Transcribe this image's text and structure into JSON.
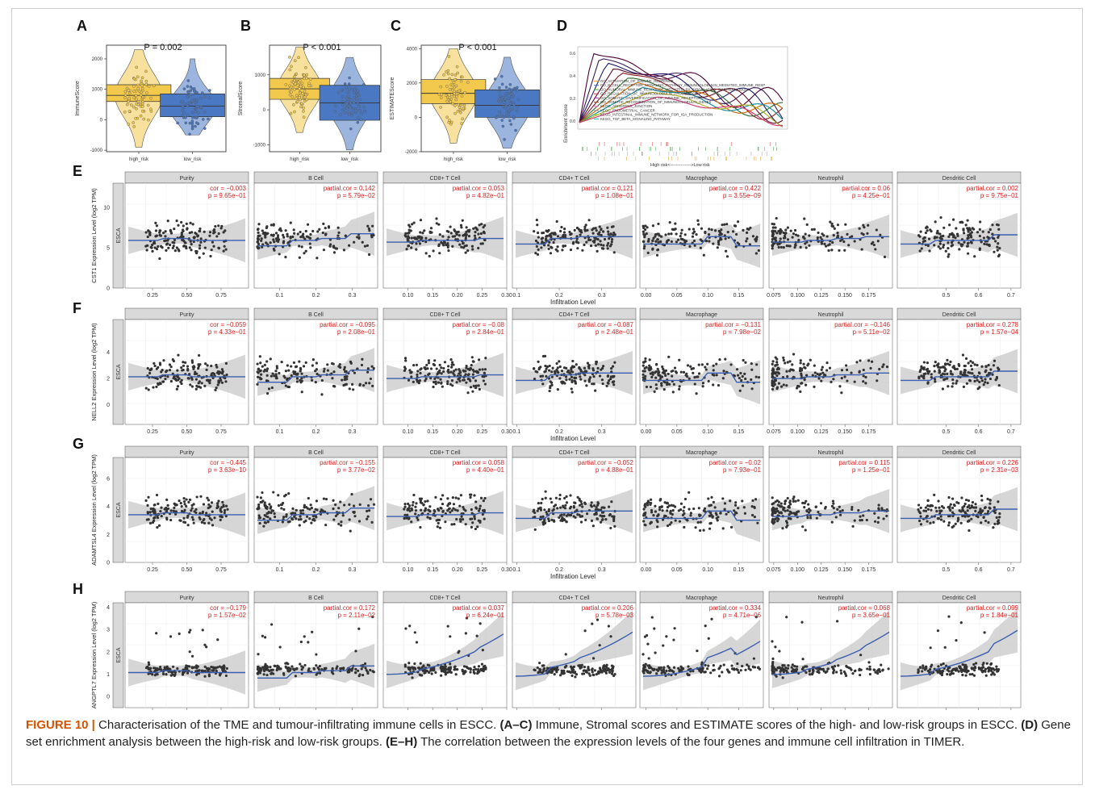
{
  "panels": {
    "A": "A",
    "B": "B",
    "C": "C",
    "D": "D",
    "E": "E",
    "F": "F",
    "G": "G",
    "H": "H"
  },
  "violins": [
    {
      "id": "A",
      "p_text": "P = 0.002",
      "ylabel": "ImmuneScore",
      "yticks": [
        -1000,
        0,
        1000,
        2000
      ],
      "ylim": [
        -1050,
        2450
      ],
      "groups": [
        "high_risk",
        "low_risk"
      ],
      "box_high": [
        600,
        800,
        1150
      ],
      "box_low": [
        100,
        450,
        850
      ],
      "range_high": [
        -900,
        2300
      ],
      "range_low": [
        -500,
        2000
      ]
    },
    {
      "id": "B",
      "p_text": "P < 0.001",
      "ylabel": "StromalScore",
      "yticks": [
        -1000,
        0,
        1000
      ],
      "ylim": [
        -1200,
        1850
      ],
      "groups": [
        "high_risk",
        "low_risk"
      ],
      "box_high": [
        300,
        600,
        900
      ],
      "box_low": [
        -300,
        200,
        700
      ],
      "range_high": [
        -650,
        1800
      ],
      "range_low": [
        -1150,
        1500
      ]
    },
    {
      "id": "C",
      "p_text": "P < 0.001",
      "ylabel": "ESTIMATEScore",
      "yticks": [
        -2000,
        0,
        2000,
        4000
      ],
      "ylim": [
        -2000,
        4200
      ],
      "groups": [
        "high_risk",
        "low_risk"
      ],
      "box_high": [
        800,
        1400,
        2200
      ],
      "box_low": [
        0,
        700,
        1600
      ],
      "range_high": [
        -1500,
        4000
      ],
      "range_low": [
        -1800,
        3500
      ]
    }
  ],
  "gsea": {
    "ylabel": "Enrichment Score",
    "yticks": [
      "0.6",
      "0.4",
      "0.2",
      "0.0"
    ],
    "xlabel": "High risk<-------------->Low risk",
    "legend": [
      "GO_ACTIVATION_OF_IMMUNE_RESPONSE",
      "GO_B_CELL_RECEPTOR_SIGNALING_PATHWAY_IMMUNOGLOBULIN_MEDIATED_IMMUNE_RESP",
      "GO_HUMORAL_IMMUNE_RESPONSE_MEDIATED_BY_CIRCULATING_IMMUNOGLOBULIN",
      "GO_REGULATION_OF_IMMUNOGLOBULIN_PRODUCTION",
      "GO_SOMATIC_DIVERSIFICATION_OF_IMMUNE_RECEPTORS",
      "GO_SOMATIC_RECOMBINATION_OF_IMMUNOGLOBULIN_GENES",
      "KEGG_ADHERENS_JUNCTION",
      "KEGG_ENDOMETRIAL_CANCER",
      "KEGG_INTESTINAL_IMMUNE_NETWORK_FOR_IGA_PRODUCTION",
      "KEGG_TGF_BETA_SIGNALING_PATHWAY"
    ],
    "colors": [
      "#ff9900",
      "#3366cc",
      "#33aa33",
      "#cc3333",
      "#9933cc",
      "#884422",
      "#ff66cc",
      "#888888",
      "#99cc00",
      "#00cccc"
    ]
  },
  "timer": {
    "cohort": "ESCA",
    "xlabel": "Infiltration Level",
    "cells": [
      "Purity",
      "B Cell",
      "CD8+ T Cell",
      "CD4+ T Cell",
      "Macrophage",
      "Neutrophil",
      "Dendritic Cell"
    ],
    "xranges": [
      [
        0.05,
        0.95
      ],
      [
        0.03,
        0.37
      ],
      [
        0.05,
        0.3
      ],
      [
        0.09,
        0.38
      ],
      [
        -0.01,
        0.19
      ],
      [
        0.07,
        0.2
      ],
      [
        0.35,
        0.73
      ]
    ],
    "xticks": [
      [
        "0.25",
        "0.50",
        "0.75"
      ],
      [
        "0.1",
        "0.2",
        "0.3"
      ],
      [
        "0.10",
        "0.15",
        "0.20",
        "0.25",
        "0.30"
      ],
      [
        "0.1",
        "0.2",
        "0.3"
      ],
      [
        "0.00",
        "0.05",
        "0.10",
        "0.15"
      ],
      [
        "0.075",
        "0.100",
        "0.125",
        "0.150",
        "0.175"
      ],
      [
        "0.5",
        "0.6",
        "0.7"
      ]
    ],
    "rows": [
      {
        "panel": "E",
        "ylabel": "CST1 Expression Level (log2 TPM)",
        "yticks": [
          0,
          5,
          10
        ],
        "ylim": [
          0,
          13
        ],
        "stats": [
          [
            "cor = −0.003",
            "p = 9.65e−01"
          ],
          [
            "partial.cor = 0.142",
            "p = 5.79e−02"
          ],
          [
            "partial.cor = 0.053",
            "p = 4.82e−01"
          ],
          [
            "partial.cor = 0.121",
            "p = 1.08e−01"
          ],
          [
            "partial.cor = 0.422",
            "p = 3.55e−09"
          ],
          [
            "partial.cor = 0.06",
            "p = 4.25e−01"
          ],
          [
            "partial.cor = 0.002",
            "p = 9.75e−01"
          ]
        ]
      },
      {
        "panel": "F",
        "ylabel": "NELL2 Expression Level (log2 TPM)",
        "yticks": [
          0,
          2,
          4
        ],
        "ylim": [
          -1.5,
          6.5
        ],
        "stats": [
          [
            "cor = −0.059",
            "p = 4.33e−01"
          ],
          [
            "partial.cor = −0.095",
            "p = 2.08e−01"
          ],
          [
            "partial.cor = −0.08",
            "p = 2.84e−01"
          ],
          [
            "partial.cor = −0.087",
            "p = 2.48e−01"
          ],
          [
            "partial.cor = −0.131",
            "p = 7.98e−02"
          ],
          [
            "partial.cor = −0.146",
            "p = 5.11e−02"
          ],
          [
            "partial.cor = 0.278",
            "p = 1.57e−04"
          ]
        ]
      },
      {
        "panel": "G",
        "ylabel": "ADAMTSL4 Expression Level (log2 TPM)",
        "yticks": [
          0,
          2,
          4,
          6
        ],
        "ylim": [
          0,
          7.5
        ],
        "stats": [
          [
            "cor = −0.445",
            "p = 3.63e−10"
          ],
          [
            "partial.cor = −0.155",
            "p = 3.77e−02"
          ],
          [
            "partial.cor = 0.058",
            "p = 4.40e−01"
          ],
          [
            "partial.cor = −0.052",
            "p = 4.88e−01"
          ],
          [
            "partial.cor = −0.02",
            "p = 7.93e−01"
          ],
          [
            "partial.cor = 0.115",
            "p = 1.25e−01"
          ],
          [
            "partial.cor = 0.226",
            "p = 2.31e−03"
          ]
        ]
      },
      {
        "panel": "H",
        "ylabel": "ANGPTL7 Expression Level (log2 TPM)",
        "yticks": [
          0,
          1,
          2,
          3,
          4
        ],
        "ylim": [
          -0.5,
          4.2
        ],
        "stats": [
          [
            "cor = −0.179",
            "p = 1.57e−02"
          ],
          [
            "partial.cor = 0.172",
            "p = 2.11e−02"
          ],
          [
            "partial.cor = 0.037",
            "p = 6.24e−01"
          ],
          [
            "partial.cor = 0.206",
            "p = 5.78e−03"
          ],
          [
            "partial.cor = 0.334",
            "p = 4.71e−06"
          ],
          [
            "partial.cor = 0.068",
            "p = 3.65e−01"
          ],
          [
            "partial.cor = 0.099",
            "p = 1.84e−01"
          ]
        ]
      }
    ]
  },
  "caption": {
    "label": "FIGURE 10 |",
    "t1": " Characterisation of the TME and tumour-infiltrating immune cells in ESCC. ",
    "b1": "(A–C)",
    "t2": " Immune, Stromal scores and ESTIMATE scores of the high- and low-risk groups in ESCC. ",
    "b2": "(D)",
    "t3": " Gene set enrichment analysis between the high-risk and low-risk groups. ",
    "b3": "(E–H)",
    "t4": " The correlation between the expression levels of the four genes and immune cell infiltration in TIMER."
  },
  "colors": {
    "high_risk": "#f2c94c",
    "low_risk": "#4a78c2",
    "stat_text": "#e02020",
    "smooth_line": "#3a5fb0",
    "ribbon": "#c8c8c8",
    "strip_bg": "#d9d9d9",
    "point": "#333333"
  }
}
